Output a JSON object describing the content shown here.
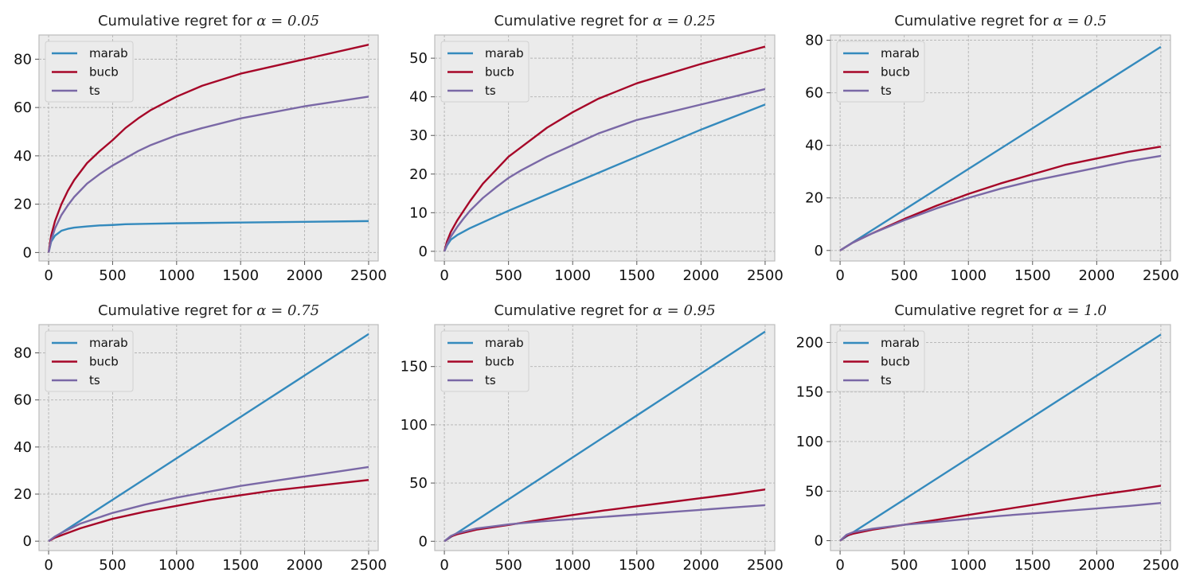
{
  "figure": {
    "facecolor": "#ffffff",
    "axes_facecolor": "#ebebeb",
    "grid_color": "#b2b2b2",
    "spine_color": "#bcbcbc"
  },
  "chart_data": [
    {
      "type": "line",
      "title": "Cumulative regret for ",
      "title_math": "α = 0.05",
      "xlim": [
        -75,
        2575
      ],
      "ylim": [
        -3.5,
        90
      ],
      "xticks": [
        0,
        500,
        1000,
        1500,
        2000,
        2500
      ],
      "xtick_labels": [
        "0",
        "500",
        "1000",
        "1500",
        "2000",
        "2500"
      ],
      "yticks": [
        0,
        20,
        40,
        60,
        80
      ],
      "ytick_labels": [
        "0",
        "20",
        "40",
        "60",
        "80"
      ],
      "grid": true,
      "legend": "top-left",
      "series": [
        {
          "name": "marab",
          "color": "#348abd",
          "x": [
            0,
            20,
            50,
            100,
            150,
            200,
            300,
            400,
            500,
            600,
            800,
            1000,
            1500,
            2000,
            2500
          ],
          "y": [
            0,
            4.5,
            7,
            9,
            9.8,
            10.3,
            10.8,
            11.2,
            11.4,
            11.7,
            11.9,
            12.1,
            12.4,
            12.7,
            13
          ]
        },
        {
          "name": "bucb",
          "color": "#a60628",
          "x": [
            0,
            20,
            50,
            100,
            150,
            200,
            300,
            400,
            500,
            600,
            700,
            800,
            1000,
            1200,
            1500,
            2000,
            2500
          ],
          "y": [
            0,
            7,
            13,
            20,
            25.5,
            30,
            37,
            42,
            46.5,
            51.5,
            55.5,
            59,
            64.5,
            69,
            74,
            80,
            86
          ]
        },
        {
          "name": "ts",
          "color": "#7a68a6",
          "x": [
            0,
            20,
            50,
            100,
            150,
            200,
            300,
            400,
            500,
            600,
            700,
            800,
            1000,
            1200,
            1500,
            2000,
            2500
          ],
          "y": [
            0,
            5,
            10,
            15.5,
            19.5,
            23,
            28.5,
            32.5,
            36,
            39,
            42,
            44.5,
            48.5,
            51.5,
            55.5,
            60.5,
            64.5
          ]
        }
      ]
    },
    {
      "type": "line",
      "title": "Cumulative regret for ",
      "title_math": "α = 0.25",
      "xlim": [
        -75,
        2575
      ],
      "ylim": [
        -2.5,
        56
      ],
      "xticks": [
        0,
        500,
        1000,
        1500,
        2000,
        2500
      ],
      "xtick_labels": [
        "0",
        "500",
        "1000",
        "1500",
        "2000",
        "2500"
      ],
      "yticks": [
        0,
        10,
        20,
        30,
        40,
        50
      ],
      "ytick_labels": [
        "0",
        "10",
        "20",
        "30",
        "40",
        "50"
      ],
      "grid": true,
      "legend": "top-left",
      "series": [
        {
          "name": "marab",
          "color": "#348abd",
          "x": [
            0,
            20,
            50,
            100,
            200,
            300,
            500,
            750,
            1000,
            1500,
            2000,
            2500
          ],
          "y": [
            0,
            1.5,
            3,
            4.2,
            6,
            7.5,
            10.5,
            14,
            17.5,
            24.5,
            31.5,
            38
          ]
        },
        {
          "name": "bucb",
          "color": "#a60628",
          "x": [
            0,
            20,
            50,
            100,
            150,
            200,
            300,
            400,
            500,
            600,
            800,
            1000,
            1200,
            1500,
            2000,
            2500
          ],
          "y": [
            0,
            2.5,
            5,
            8,
            10.5,
            13,
            17.5,
            21,
            24.5,
            27,
            32,
            36,
            39.5,
            43.5,
            48.5,
            53
          ]
        },
        {
          "name": "ts",
          "color": "#7a68a6",
          "x": [
            0,
            20,
            50,
            100,
            150,
            200,
            300,
            400,
            500,
            600,
            800,
            1000,
            1200,
            1500,
            2000,
            2500
          ],
          "y": [
            0,
            1.8,
            3.8,
            6.3,
            8.5,
            10.5,
            13.8,
            16.5,
            19,
            21,
            24.5,
            27.5,
            30.5,
            34,
            38,
            42
          ]
        }
      ]
    },
    {
      "type": "line",
      "title": "Cumulative regret for ",
      "title_math": "α = 0.5",
      "xlim": [
        -75,
        2575
      ],
      "ylim": [
        -4,
        82
      ],
      "xticks": [
        0,
        500,
        1000,
        1500,
        2000,
        2500
      ],
      "xtick_labels": [
        "0",
        "500",
        "1000",
        "1500",
        "2000",
        "2500"
      ],
      "yticks": [
        0,
        20,
        40,
        60,
        80
      ],
      "ytick_labels": [
        "0",
        "20",
        "40",
        "60",
        "80"
      ],
      "grid": true,
      "legend": "top-left",
      "series": [
        {
          "name": "marab",
          "color": "#348abd",
          "x": [
            0,
            500,
            1000,
            1500,
            2000,
            2500
          ],
          "y": [
            0,
            15.5,
            31,
            46.5,
            62,
            77.5
          ]
        },
        {
          "name": "bucb",
          "color": "#a60628",
          "x": [
            0,
            100,
            250,
            500,
            750,
            1000,
            1250,
            1500,
            1750,
            2000,
            2250,
            2500
          ],
          "y": [
            0,
            3,
            6.5,
            12,
            17,
            21.5,
            25.5,
            29,
            32.5,
            35,
            37.5,
            39.5
          ]
        },
        {
          "name": "ts",
          "color": "#7a68a6",
          "x": [
            0,
            100,
            250,
            500,
            750,
            1000,
            1250,
            1500,
            1750,
            2000,
            2250,
            2500
          ],
          "y": [
            0,
            3,
            6.5,
            11.5,
            16,
            20,
            23.5,
            26.5,
            29,
            31.5,
            34,
            36
          ]
        }
      ]
    },
    {
      "type": "line",
      "title": "Cumulative regret for ",
      "title_math": "α = 0.75",
      "xlim": [
        -75,
        2575
      ],
      "ylim": [
        -4,
        92
      ],
      "xticks": [
        0,
        500,
        1000,
        1500,
        2000,
        2500
      ],
      "xtick_labels": [
        "0",
        "500",
        "1000",
        "1500",
        "2000",
        "2500"
      ],
      "yticks": [
        0,
        20,
        40,
        60,
        80
      ],
      "ytick_labels": [
        "0",
        "20",
        "40",
        "60",
        "80"
      ],
      "grid": true,
      "legend": "top-left",
      "series": [
        {
          "name": "marab",
          "color": "#348abd",
          "x": [
            0,
            500,
            1000,
            1500,
            2000,
            2500
          ],
          "y": [
            0,
            17.6,
            35.2,
            52.8,
            70.4,
            88
          ]
        },
        {
          "name": "bucb",
          "color": "#a60628",
          "x": [
            0,
            50,
            100,
            250,
            500,
            750,
            1000,
            1250,
            1500,
            1750,
            2000,
            2250,
            2500
          ],
          "y": [
            0,
            1.5,
            2.5,
            5.5,
            9.5,
            12.5,
            15,
            17.5,
            19.5,
            21.5,
            23,
            24.5,
            26
          ]
        },
        {
          "name": "ts",
          "color": "#7a68a6",
          "x": [
            0,
            50,
            100,
            250,
            500,
            750,
            1000,
            1250,
            1500,
            1750,
            2000,
            2250,
            2500
          ],
          "y": [
            0,
            2,
            3.5,
            7.5,
            12,
            15.5,
            18.5,
            21,
            23.5,
            25.5,
            27.5,
            29.5,
            31.5
          ]
        }
      ]
    },
    {
      "type": "line",
      "title": "Cumulative regret for ",
      "title_math": "α = 0.95",
      "xlim": [
        -75,
        2575
      ],
      "ylim": [
        -8,
        186
      ],
      "xticks": [
        0,
        500,
        1000,
        1500,
        2000,
        2500
      ],
      "xtick_labels": [
        "0",
        "500",
        "1000",
        "1500",
        "2000",
        "2500"
      ],
      "yticks": [
        0,
        50,
        100,
        150
      ],
      "ytick_labels": [
        "0",
        "50",
        "100",
        "150"
      ],
      "grid": true,
      "legend": "top-left",
      "series": [
        {
          "name": "marab",
          "color": "#348abd",
          "x": [
            0,
            500,
            1000,
            1500,
            2000,
            2500
          ],
          "y": [
            0,
            36,
            72,
            108,
            144,
            180
          ]
        },
        {
          "name": "bucb",
          "color": "#a60628",
          "x": [
            0,
            50,
            100,
            250,
            500,
            750,
            1000,
            1250,
            1500,
            1750,
            2000,
            2250,
            2500
          ],
          "y": [
            0,
            4,
            6,
            10,
            14,
            18.5,
            22.5,
            26.5,
            30,
            33.5,
            37,
            40.5,
            44.5
          ]
        },
        {
          "name": "ts",
          "color": "#7a68a6",
          "x": [
            0,
            50,
            100,
            250,
            500,
            750,
            1000,
            1250,
            1500,
            1750,
            2000,
            2250,
            2500
          ],
          "y": [
            0,
            4.5,
            7,
            11,
            14.5,
            17,
            19,
            21,
            23,
            25,
            27,
            29,
            31
          ]
        }
      ]
    },
    {
      "type": "line",
      "title": "Cumulative regret for ",
      "title_math": "α = 1.0",
      "xlim": [
        -75,
        2575
      ],
      "ylim": [
        -10,
        218
      ],
      "xticks": [
        0,
        500,
        1000,
        1500,
        2000,
        2500
      ],
      "xtick_labels": [
        "0",
        "500",
        "1000",
        "1500",
        "2000",
        "2500"
      ],
      "yticks": [
        0,
        50,
        100,
        150,
        200
      ],
      "ytick_labels": [
        "0",
        "50",
        "100",
        "150",
        "200"
      ],
      "grid": true,
      "legend": "top-left",
      "series": [
        {
          "name": "marab",
          "color": "#348abd",
          "x": [
            0,
            500,
            1000,
            1500,
            2000,
            2500
          ],
          "y": [
            0,
            41.6,
            83.2,
            124.8,
            166.4,
            208
          ]
        },
        {
          "name": "bucb",
          "color": "#a60628",
          "x": [
            0,
            50,
            100,
            250,
            500,
            750,
            1000,
            1250,
            1500,
            1750,
            2000,
            2250,
            2500
          ],
          "y": [
            0,
            5,
            7,
            11,
            16,
            21,
            26,
            31,
            36,
            41,
            46,
            50.5,
            55.5
          ]
        },
        {
          "name": "ts",
          "color": "#7a68a6",
          "x": [
            0,
            50,
            100,
            250,
            500,
            750,
            1000,
            1250,
            1500,
            1750,
            2000,
            2250,
            2500
          ],
          "y": [
            0,
            6,
            8.5,
            12,
            16,
            19,
            22,
            25,
            27.5,
            30,
            32.5,
            35,
            38
          ]
        }
      ]
    }
  ]
}
